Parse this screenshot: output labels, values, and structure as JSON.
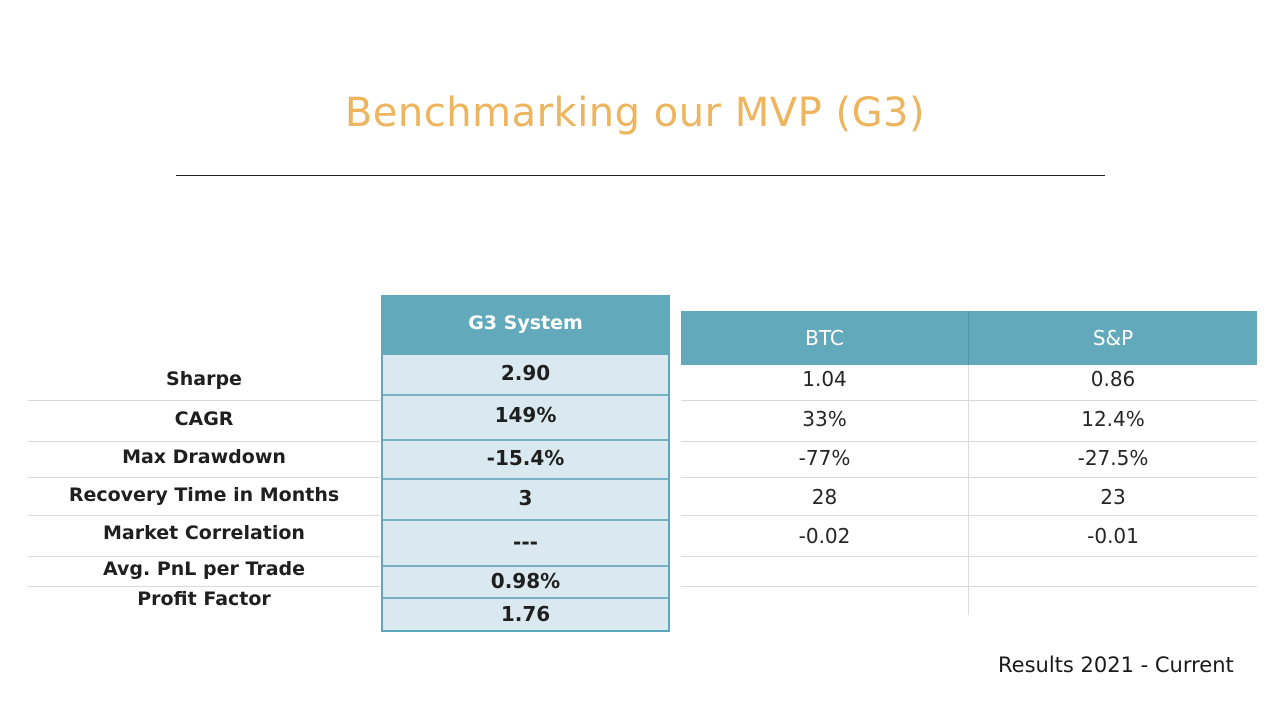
{
  "title": "Benchmarking our MVP (G3)",
  "colors": {
    "accent": "#EDB55E",
    "header": "#62A9BC",
    "g3_fill": "#D9E9EF"
  },
  "table": {
    "g3_header": "G3 System",
    "benchmark_headers": [
      "BTC",
      "S&P"
    ],
    "rows": [
      {
        "label": "Sharpe",
        "g3": "2.90",
        "btc": "1.04",
        "sp": "0.86"
      },
      {
        "label": "CAGR",
        "g3": "149%",
        "btc": "33%",
        "sp": "12.4%"
      },
      {
        "label": "Max Drawdown",
        "g3": "-15.4%",
        "btc": "-77%",
        "sp": "-27.5%"
      },
      {
        "label": "Recovery Time in Months",
        "g3": "3",
        "btc": "28",
        "sp": "23"
      },
      {
        "label": "Market Correlation",
        "g3": "---",
        "btc": "-0.02",
        "sp": "-0.01"
      },
      {
        "label": "Avg. PnL per Trade",
        "g3": "0.98%"
      },
      {
        "label": "Profit Factor",
        "g3": "1.76"
      }
    ]
  },
  "footnote": "Results 2021 - Current"
}
